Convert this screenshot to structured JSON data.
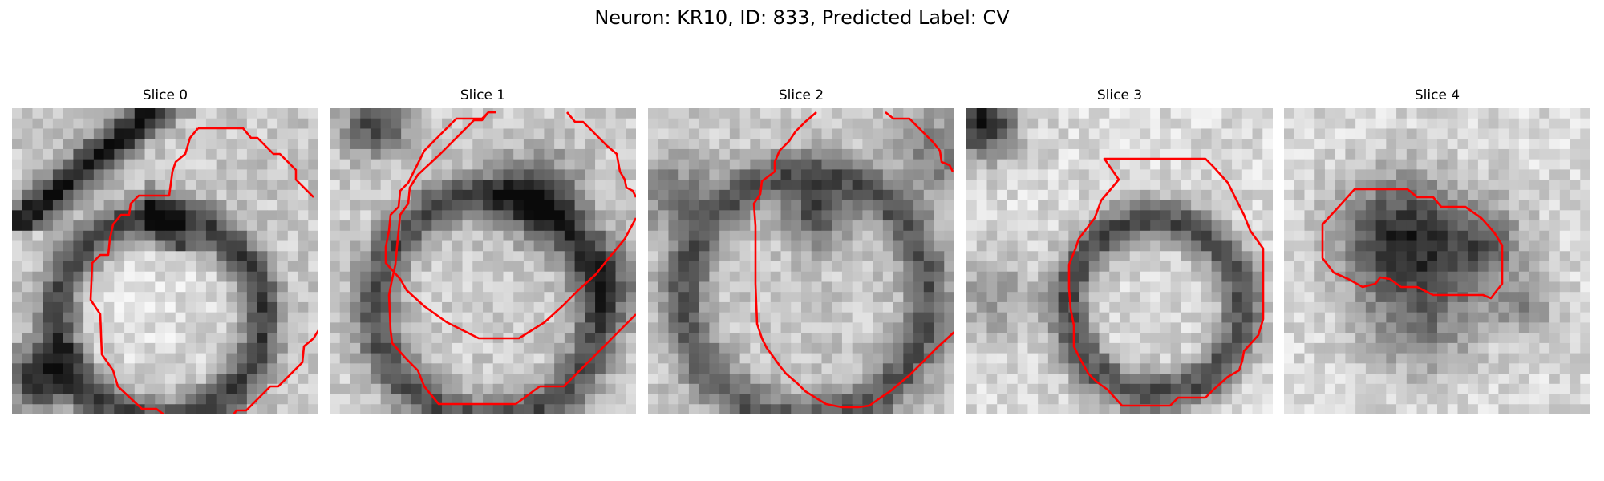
{
  "figure": {
    "title": "Neuron: KR10, ID: 833, Predicted Label: CV"
  },
  "outline_color": "#ff0000",
  "colormap": "grayscale",
  "panels": [
    {
      "title": "Slice 0"
    },
    {
      "title": "Slice 1"
    },
    {
      "title": "Slice 2"
    },
    {
      "title": "Slice 3"
    },
    {
      "title": "Slice 4"
    }
  ]
}
